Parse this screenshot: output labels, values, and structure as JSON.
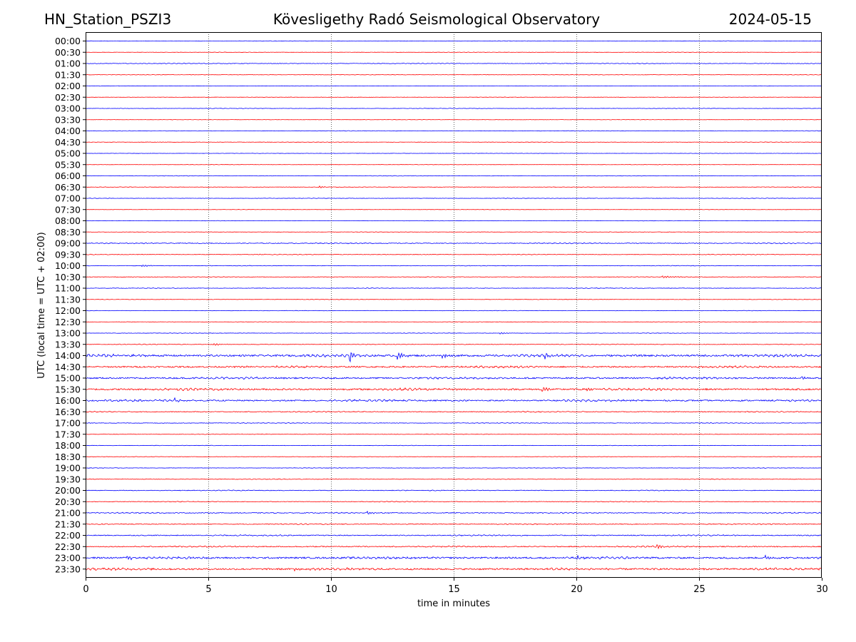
{
  "header": {
    "station": "HN_Station_PSZI3",
    "observatory": "Kövesligethy Radó Seismological Observatory",
    "date": "2024-05-15"
  },
  "chart_data": {
    "type": "line",
    "title": "Kövesligethy Radó Seismological Observatory",
    "xlabel": "time in minutes",
    "ylabel": "UTC (local time = UTC + 02:00)",
    "xlim": [
      0,
      30
    ],
    "xticks": [
      0,
      5,
      10,
      15,
      20,
      25,
      30
    ],
    "grid": "vertical dotted lines at each 5-minute tick",
    "row_labels": [
      "00:00",
      "00:30",
      "01:00",
      "01:30",
      "02:00",
      "02:30",
      "03:00",
      "03:30",
      "04:00",
      "04:30",
      "05:00",
      "05:30",
      "06:00",
      "06:30",
      "07:00",
      "07:30",
      "08:00",
      "08:30",
      "09:00",
      "09:30",
      "10:00",
      "10:30",
      "11:00",
      "11:30",
      "12:00",
      "12:30",
      "13:00",
      "13:30",
      "14:00",
      "14:30",
      "15:00",
      "15:30",
      "16:00",
      "16:30",
      "17:00",
      "17:30",
      "18:00",
      "18:30",
      "19:00",
      "19:30",
      "20:00",
      "20:30",
      "21:00",
      "21:30",
      "22:00",
      "22:30",
      "23:00",
      "23:30"
    ],
    "row_colors": [
      "#0000ff",
      "#ff0000"
    ],
    "row_color_pattern": "rows alternate blue (on the hour) and red (half hour), first row blue",
    "baseline_activity": [
      0.4,
      0.3,
      0.6,
      0.4,
      0.3,
      0.3,
      0.4,
      0.3,
      0.4,
      0.4,
      0.3,
      0.3,
      0.4,
      0.4,
      0.4,
      0.3,
      0.3,
      0.4,
      0.8,
      0.6,
      0.5,
      0.5,
      0.5,
      0.4,
      0.4,
      0.3,
      0.4,
      0.6,
      2.0,
      1.6,
      1.6,
      1.8,
      1.5,
      0.8,
      0.6,
      0.4,
      0.4,
      0.4,
      0.4,
      0.5,
      0.7,
      0.6,
      0.9,
      0.8,
      1.0,
      1.1,
      1.8,
      1.8
    ],
    "events": [
      {
        "row": "14:00",
        "start_min": 10.75,
        "amplitude": 13,
        "decay_min": 0.1
      },
      {
        "row": "14:00",
        "start_min": 12.7,
        "amplitude": 5,
        "decay_min": 0.25
      },
      {
        "row": "14:00",
        "start_min": 14.5,
        "amplitude": 3,
        "decay_min": 0.3
      },
      {
        "row": "14:00",
        "start_min": 18.7,
        "amplitude": 4,
        "decay_min": 0.15
      },
      {
        "row": "16:00",
        "start_min": 3.6,
        "amplitude": 4,
        "decay_min": 0.15
      },
      {
        "row": "15:00",
        "start_min": 29.2,
        "amplitude": 3,
        "decay_min": 0.15
      },
      {
        "row": "15:30",
        "start_min": 18.6,
        "amplitude": 4,
        "decay_min": 0.2
      },
      {
        "row": "15:30",
        "start_min": 20.4,
        "amplitude": 3,
        "decay_min": 0.2
      },
      {
        "row": "23:00",
        "start_min": 1.7,
        "amplitude": 4,
        "decay_min": 0.15
      },
      {
        "row": "23:00",
        "start_min": 20.0,
        "amplitude": 4,
        "decay_min": 0.15
      },
      {
        "row": "23:00",
        "start_min": 27.7,
        "amplitude": 3,
        "decay_min": 0.2
      },
      {
        "row": "22:30",
        "start_min": 23.3,
        "amplitude": 3,
        "decay_min": 0.2
      },
      {
        "row": "21:00",
        "start_min": 11.5,
        "amplitude": 2,
        "decay_min": 0.2
      },
      {
        "row": "06:30",
        "start_min": 9.5,
        "amplitude": 1.5,
        "decay_min": 0.2
      },
      {
        "row": "10:30",
        "start_min": 23.5,
        "amplitude": 1.5,
        "decay_min": 0.5
      },
      {
        "row": "13:30",
        "start_min": 5.2,
        "amplitude": 1.5,
        "decay_min": 0.3
      },
      {
        "row": "13:00",
        "start_min": 16.9,
        "amplitude": 1.2,
        "decay_min": 0.3
      },
      {
        "row": "10:00",
        "start_min": 2.3,
        "amplitude": 1.2,
        "decay_min": 0.3
      },
      {
        "row": "23:30",
        "start_min": 8.5,
        "amplitude": 2.5,
        "decay_min": 0.2
      }
    ]
  }
}
